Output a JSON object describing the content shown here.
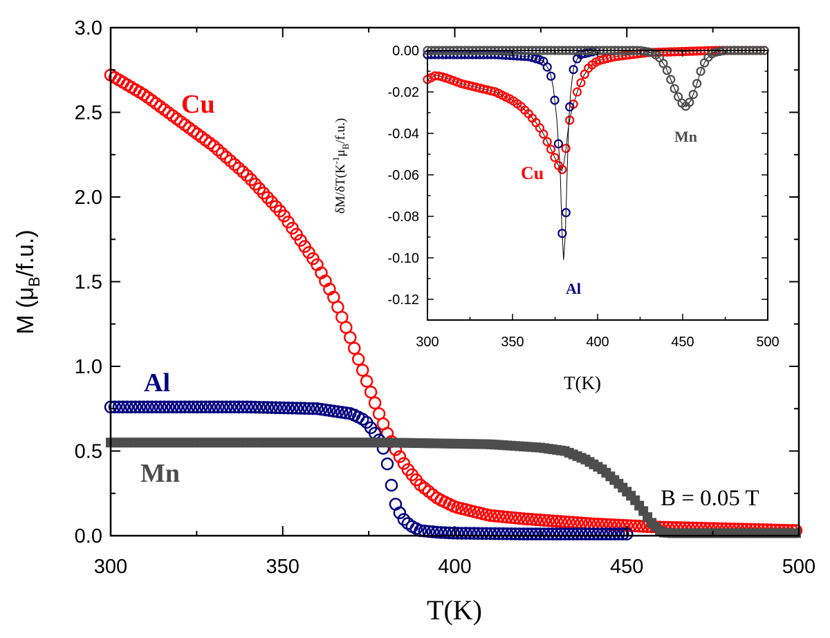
{
  "chart_data": [
    {
      "type": "scatter",
      "xlabel": "T(K)",
      "ylabel": "M (μ_B/f.u.)",
      "xlim": [
        300,
        500
      ],
      "ylim": [
        0,
        3.0
      ],
      "xticks": [
        "300",
        "350",
        "400",
        "450",
        "500"
      ],
      "yticks": [
        "0.0",
        "0.5",
        "1.0",
        "1.5",
        "2.0",
        "2.5",
        "3.0"
      ],
      "annotation": "B = 0.05 T",
      "series": [
        {
          "name": "Cu",
          "color": "#ff0000",
          "marker": "open-circle",
          "x": [
            300,
            310,
            320,
            330,
            340,
            350,
            360,
            365,
            370,
            375,
            378,
            380,
            383,
            386,
            390,
            395,
            400,
            410,
            420,
            440,
            460,
            480,
            500
          ],
          "y": [
            2.72,
            2.6,
            2.45,
            2.3,
            2.12,
            1.9,
            1.6,
            1.4,
            1.15,
            0.88,
            0.72,
            0.62,
            0.5,
            0.4,
            0.3,
            0.22,
            0.17,
            0.12,
            0.1,
            0.07,
            0.05,
            0.04,
            0.03
          ]
        },
        {
          "name": "Al",
          "color": "#000080",
          "marker": "open-circle",
          "x": [
            300,
            320,
            340,
            360,
            370,
            374,
            377,
            379,
            380,
            381,
            382,
            383,
            385,
            387,
            390,
            395,
            400,
            420,
            450
          ],
          "y": [
            0.76,
            0.76,
            0.76,
            0.75,
            0.72,
            0.68,
            0.6,
            0.53,
            0.46,
            0.37,
            0.25,
            0.17,
            0.1,
            0.06,
            0.03,
            0.02,
            0.015,
            0.01,
            0.01
          ]
        },
        {
          "name": "Mn",
          "color": "#4d4d4d",
          "marker": "filled-square",
          "x": [
            300,
            340,
            380,
            410,
            425,
            432,
            438,
            443,
            448,
            452,
            455,
            457,
            459,
            460,
            463,
            470,
            480,
            500
          ],
          "y": [
            0.55,
            0.55,
            0.55,
            0.54,
            0.52,
            0.5,
            0.45,
            0.39,
            0.3,
            0.22,
            0.14,
            0.08,
            0.04,
            0.02,
            0.015,
            0.015,
            0.015,
            0.015
          ]
        }
      ]
    },
    {
      "type": "scatter",
      "role": "inset",
      "xlabel": "T(K)",
      "ylabel": "δM/δT(K⁻¹μ_B/f.u.)",
      "xlim": [
        300,
        500
      ],
      "ylim": [
        -0.13,
        0.0
      ],
      "xticks": [
        "300",
        "350",
        "400",
        "450",
        "500"
      ],
      "yticks": [
        "0.00",
        "-0.02",
        "-0.04",
        "-0.06",
        "-0.08",
        "-0.10",
        "-0.12"
      ],
      "series": [
        {
          "name": "Cu",
          "color": "#ff0000",
          "marker": "open-circle",
          "x": [
            300,
            305,
            310,
            320,
            330,
            340,
            350,
            355,
            360,
            365,
            368,
            371,
            374,
            376,
            378,
            379,
            380,
            381,
            382,
            383,
            385,
            388,
            390,
            392,
            395,
            400,
            410,
            420,
            430,
            450,
            470,
            500
          ],
          "y": [
            -0.014,
            -0.012,
            -0.013,
            -0.016,
            -0.018,
            -0.02,
            -0.024,
            -0.027,
            -0.031,
            -0.036,
            -0.04,
            -0.045,
            -0.05,
            -0.054,
            -0.057,
            -0.058,
            -0.055,
            -0.05,
            -0.043,
            -0.036,
            -0.028,
            -0.02,
            -0.016,
            -0.012,
            -0.008,
            -0.005,
            -0.003,
            -0.002,
            -0.001,
            -0.0005,
            0,
            0
          ]
        },
        {
          "name": "Al",
          "color": "#000080",
          "marker": "open-circle",
          "x": [
            300,
            320,
            340,
            360,
            368,
            372,
            374,
            376,
            377,
            378,
            379,
            380,
            381,
            382,
            383,
            384,
            385,
            386,
            388,
            390,
            395,
            400
          ],
          "y": [
            -0.002,
            -0.002,
            -0.002,
            -0.003,
            -0.005,
            -0.01,
            -0.018,
            -0.033,
            -0.045,
            -0.057,
            -0.085,
            -0.101,
            -0.089,
            -0.062,
            -0.035,
            -0.022,
            -0.014,
            -0.008,
            -0.004,
            -0.002,
            -0.001,
            0
          ]
        },
        {
          "name": "Mn",
          "color": "#4d4d4d",
          "marker": "open-circle",
          "x": [
            300,
            350,
            400,
            425,
            432,
            436,
            440,
            443,
            446,
            449,
            452,
            455,
            458,
            461,
            464,
            468,
            475,
            500
          ],
          "y": [
            0,
            0,
            0,
            0,
            -0.001,
            -0.003,
            -0.008,
            -0.014,
            -0.02,
            -0.025,
            -0.027,
            -0.024,
            -0.017,
            -0.009,
            -0.004,
            -0.001,
            0,
            0
          ]
        }
      ]
    }
  ]
}
